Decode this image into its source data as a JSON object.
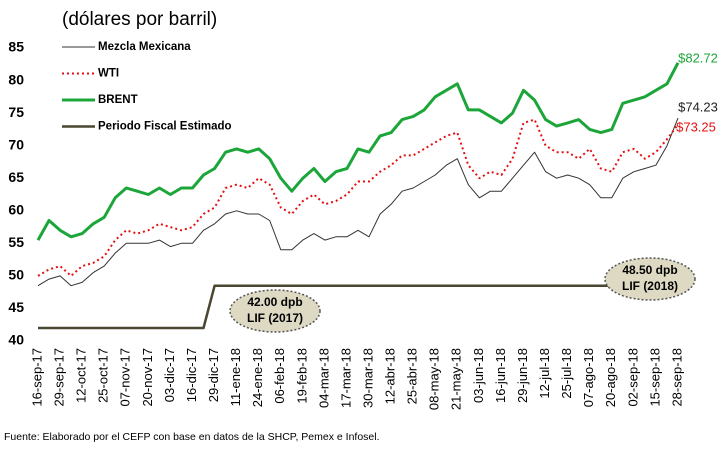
{
  "chart_data": {
    "type": "line",
    "title": "(dólares por barril)",
    "source": "Fuente: Elaborado por el CEFP con base en datos de la SHCP, Pemex e Infosel.",
    "categories": [
      "16-sep-17",
      null,
      "29-sep-17",
      null,
      "12-oct-17",
      null,
      "25-oct-17",
      null,
      "07-nov-17",
      null,
      "20-nov-17",
      null,
      "03-dic-17",
      null,
      "16-dic-17",
      null,
      "29-dic-17",
      null,
      "11-ene-18",
      null,
      "24-ene-18",
      null,
      "06-feb-18",
      null,
      "19-feb-18",
      null,
      "04-mar-18",
      null,
      "17-mar-18",
      null,
      "30-mar-18",
      null,
      "12-abr-18",
      null,
      "25-abr-18",
      null,
      "08-may-18",
      null,
      "21-may-18",
      null,
      "03-jun-18",
      null,
      "16-jun-18",
      null,
      "29-jun-18",
      null,
      "12-jul-18",
      null,
      "25-jul-18",
      null,
      "07-ago-18",
      null,
      "20-ago-18",
      null,
      "02-sep-18",
      null,
      "15-sep-18",
      null,
      "28-sep-18"
    ],
    "series": [
      {
        "name": "Mezcla Mexicana",
        "color": "#333333",
        "width": 1,
        "dash": "none",
        "values": [
          48.5,
          49.5,
          50,
          48.5,
          49,
          50.5,
          51.5,
          53.5,
          55,
          55,
          55,
          55.5,
          54.5,
          55,
          55,
          57,
          58,
          59.5,
          60,
          59.5,
          59.5,
          58.5,
          54,
          54,
          55.5,
          56.5,
          55.5,
          56,
          56,
          57,
          56,
          59.5,
          61,
          63,
          63.5,
          64.5,
          65.5,
          67,
          68,
          64,
          62,
          63,
          63,
          65,
          67,
          69,
          66,
          65,
          65.5,
          65,
          64,
          62,
          62,
          65,
          66,
          66.5,
          67,
          70,
          74.23
        ],
        "end_label": "$74.23",
        "end_label_color": "#222222"
      },
      {
        "name": "WTI",
        "color": "#e31010",
        "width": 2,
        "dash": "2 3",
        "values": [
          50,
          51,
          51.5,
          50,
          51.5,
          52,
          53,
          55.5,
          57,
          56.5,
          57,
          58,
          57.5,
          57,
          57.5,
          59.5,
          60.5,
          63.5,
          64,
          63.5,
          65,
          64,
          60.5,
          59.5,
          61.5,
          62.5,
          61,
          61.5,
          62.5,
          64.5,
          64.5,
          66,
          67,
          68.5,
          68.5,
          69.5,
          70.5,
          71.5,
          72,
          67,
          65,
          66,
          65.5,
          68,
          73.5,
          74,
          70,
          69,
          69,
          68,
          69.5,
          66.5,
          66,
          69,
          69.5,
          68,
          69,
          71,
          73.25
        ],
        "end_label": "$73.25",
        "end_label_color": "#e31010"
      },
      {
        "name": "BRENT",
        "color": "#1ca63a",
        "width": 3,
        "dash": "none",
        "values": [
          55.5,
          58.5,
          57,
          56,
          56.5,
          58,
          59,
          62,
          63.5,
          63,
          62.5,
          63.5,
          62.5,
          63.5,
          63.5,
          65.5,
          66.5,
          69,
          69.5,
          69,
          69.5,
          68,
          65,
          63,
          65,
          66.5,
          64.5,
          66,
          66.5,
          69.5,
          69,
          71.5,
          72,
          74,
          74.5,
          75.5,
          77.5,
          78.5,
          79.5,
          75.5,
          75.5,
          74.5,
          73.5,
          75,
          78.5,
          77,
          74,
          73,
          73.5,
          74,
          72.5,
          72,
          72.5,
          76.5,
          77,
          77.5,
          78.5,
          79.5,
          82.72
        ],
        "end_label": "$82.72",
        "end_label_color": "#1ca63a"
      },
      {
        "name": "Periodo Fiscal Estimado",
        "color": "#4a4630",
        "width": 2.5,
        "dash": "none",
        "values": [
          42,
          42,
          42,
          42,
          42,
          42,
          42,
          42,
          42,
          42,
          42,
          42,
          42,
          42,
          42,
          42,
          48.5,
          48.5,
          48.5,
          48.5,
          48.5,
          48.5,
          48.5,
          48.5,
          48.5,
          48.5,
          48.5,
          48.5,
          48.5,
          48.5,
          48.5,
          48.5,
          48.5,
          48.5,
          48.5,
          48.5,
          48.5,
          48.5,
          48.5,
          48.5,
          48.5,
          48.5,
          48.5,
          48.5,
          48.5,
          48.5,
          48.5,
          48.5,
          48.5,
          48.5,
          48.5,
          48.5,
          48.5,
          48.5,
          48.5,
          48.5,
          48.5,
          48.5,
          48.5
        ]
      }
    ],
    "annotations": [
      {
        "text": "42.00 dpb",
        "note": "LIF (2017)"
      },
      {
        "text": "48.50 dpb",
        "note": "LIF (2018)"
      }
    ],
    "ylim": [
      40,
      85
    ],
    "yticks": [
      40,
      45,
      50,
      55,
      60,
      65,
      70,
      75,
      80,
      85
    ],
    "grid": false,
    "legend": "upper left"
  }
}
